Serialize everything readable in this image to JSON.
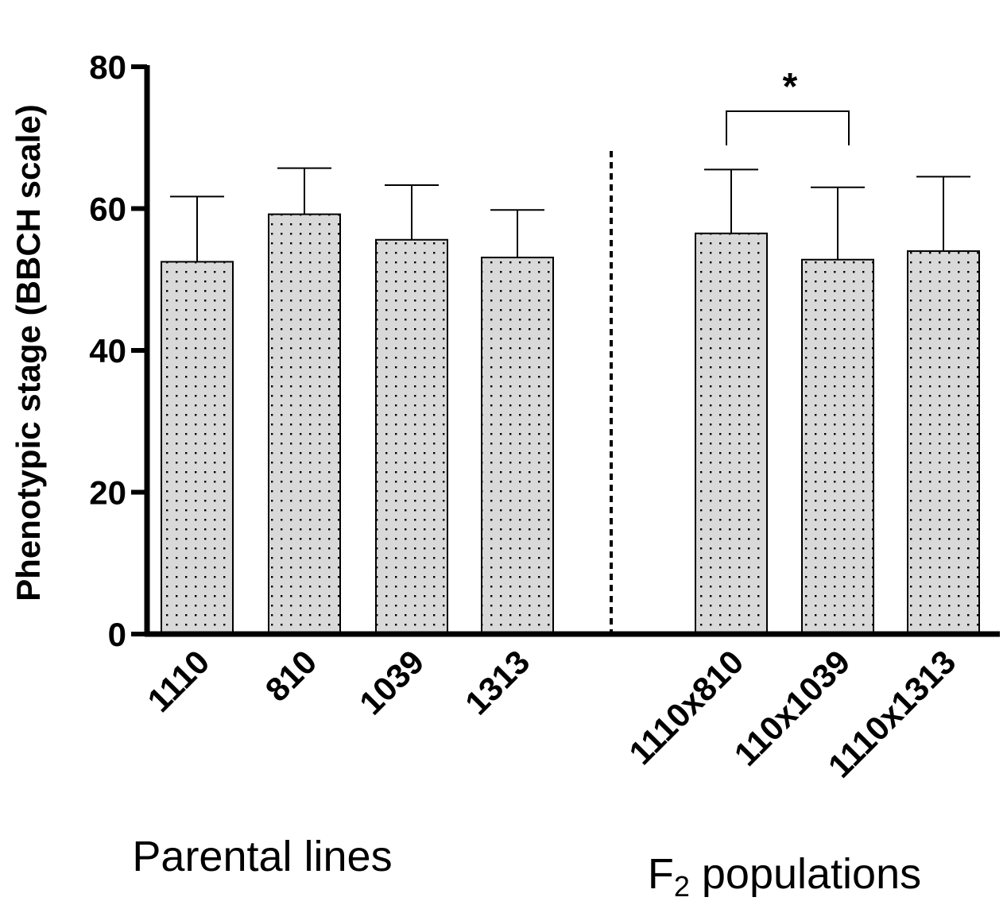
{
  "chart_data": {
    "type": "bar",
    "title": "",
    "ylabel": "Phenotypic stage (BBCH scale)",
    "xlabel": "",
    "ylim": [
      0,
      80
    ],
    "yticks": [
      0,
      20,
      40,
      60,
      80
    ],
    "ytick_labels": [
      "0",
      "20",
      "40",
      "60",
      "80"
    ],
    "grid": false,
    "categories": [
      "1110",
      "810",
      "1039",
      "1313",
      "1110x810",
      "110x1039",
      "1110x1313"
    ],
    "values": [
      52.5,
      59.2,
      55.6,
      53.1,
      56.5,
      52.8,
      54.0
    ],
    "error_upper": [
      61.7,
      65.7,
      63.3,
      59.8,
      65.5,
      63.0,
      64.5
    ],
    "groups": [
      {
        "label_main": "Parental lines",
        "label_sub": "",
        "label_after": "",
        "category_indices": [
          0,
          1,
          2,
          3
        ]
      },
      {
        "label_main": "F",
        "label_sub": "2",
        "label_after": " populations",
        "category_indices": [
          4,
          5,
          6
        ]
      }
    ],
    "significance": [
      {
        "from": 4,
        "to": 5,
        "label": "*"
      }
    ],
    "colors": {
      "bar_fill": "#d9d9d9",
      "bar_stroke": "#000000",
      "dot": "#000000",
      "axis": "#000000"
    }
  }
}
